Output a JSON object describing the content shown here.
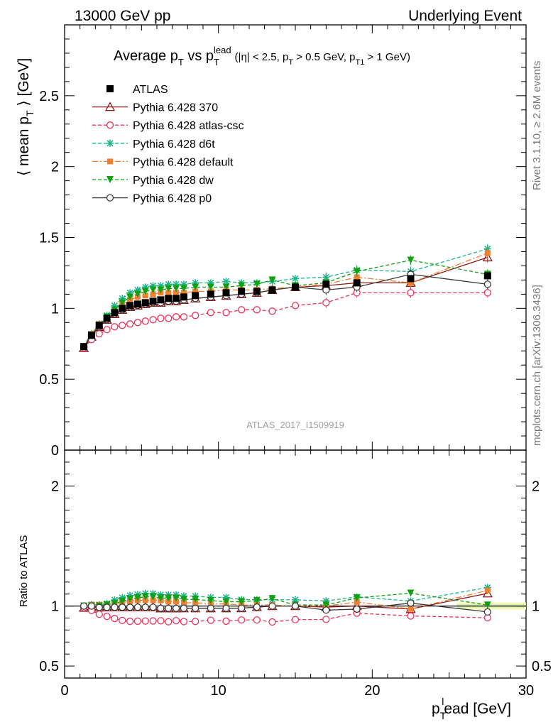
{
  "header": {
    "left": "13000 GeV pp",
    "right": "Underlying Event"
  },
  "side_labels": {
    "rivet": "Rivet 3.1.10, ≥ 2.6M events",
    "mcplots": "mcplots.cern.ch [arXiv:1306.3436]"
  },
  "watermark": "ATLAS_2017_I1509919",
  "chart_data": [
    {
      "type": "line",
      "title": "Average p_T vs p_T^lead (|η| < 2.5, p_T > 0.5 GeV, p_T1 > 1 GeV)",
      "title_parts": {
        "main": "Average p",
        "sub1": "T",
        "vs": " vs p",
        "sub2": "T",
        "sup2": "lead",
        "cuts": "(|η| < 2.5, p",
        "cut_sub1": "T",
        "cuts2": " > 0.5 GeV, p",
        "cut_sub2": "T1",
        "cuts3": " > 1 GeV)"
      },
      "ylabel": "⟨ mean p_T ⟩ [GeV]",
      "ylabel_parts": {
        "a": "⟨ mean p",
        "sub": "T",
        "b": " ⟩ [GeV]"
      },
      "xlim": [
        0,
        30
      ],
      "ylim": [
        0,
        3
      ],
      "y_ticks": [
        "0",
        "0.5",
        "1",
        "1.5",
        "2",
        "2.5"
      ],
      "legend_position": "top-left",
      "x": [
        1.25,
        1.75,
        2.25,
        2.75,
        3.25,
        3.75,
        4.25,
        4.75,
        5.25,
        5.75,
        6.25,
        6.75,
        7.25,
        7.75,
        8.5,
        9.5,
        10.5,
        11.5,
        12.5,
        13.5,
        15,
        17,
        19,
        22.5,
        27.5
      ],
      "series": [
        {
          "name": "ATLAS",
          "style": "data",
          "color": "#000000",
          "marker": "filled-square",
          "dash": "",
          "values": [
            0.73,
            0.81,
            0.88,
            0.93,
            0.97,
            1.0,
            1.02,
            1.03,
            1.04,
            1.05,
            1.06,
            1.07,
            1.07,
            1.08,
            1.09,
            1.1,
            1.11,
            1.12,
            1.12,
            1.13,
            1.15,
            1.17,
            1.18,
            1.21,
            1.23
          ]
        },
        {
          "name": "Pythia 6.428 370",
          "style": "mc",
          "color": "#8b1a1a",
          "marker": "open-triangle",
          "dash": "",
          "values": [
            0.72,
            0.8,
            0.87,
            0.92,
            0.96,
            0.99,
            1.01,
            1.02,
            1.03,
            1.04,
            1.04,
            1.05,
            1.05,
            1.06,
            1.07,
            1.08,
            1.09,
            1.1,
            1.11,
            1.13,
            1.15,
            1.16,
            1.18,
            1.18,
            1.36
          ]
        },
        {
          "name": "Pythia 6.428 atlas-csc",
          "style": "mc",
          "color": "#e8345c",
          "marker": "open-circle",
          "dash": "5,3",
          "values": [
            0.72,
            0.78,
            0.82,
            0.85,
            0.87,
            0.88,
            0.89,
            0.9,
            0.91,
            0.92,
            0.93,
            0.93,
            0.94,
            0.94,
            0.95,
            0.97,
            0.97,
            0.99,
            0.99,
            0.98,
            1.02,
            1.04,
            1.11,
            1.11,
            1.11
          ]
        },
        {
          "name": "Pythia 6.428 d6t",
          "style": "mc",
          "color": "#1ab38a",
          "marker": "star",
          "dash": "5,3",
          "values": [
            0.73,
            0.82,
            0.89,
            0.95,
            1.02,
            1.07,
            1.11,
            1.13,
            1.15,
            1.16,
            1.16,
            1.17,
            1.17,
            1.17,
            1.18,
            1.18,
            1.19,
            1.18,
            1.18,
            1.19,
            1.21,
            1.22,
            1.27,
            1.26,
            1.42
          ]
        },
        {
          "name": "Pythia 6.428 default",
          "style": "mc",
          "color": "#f07f30",
          "marker": "filled-square-small",
          "dash": "8,3,2,3",
          "values": [
            0.73,
            0.82,
            0.89,
            0.94,
            0.99,
            1.03,
            1.06,
            1.08,
            1.09,
            1.1,
            1.11,
            1.11,
            1.11,
            1.11,
            1.12,
            1.12,
            1.13,
            1.13,
            1.13,
            1.14,
            1.15,
            1.17,
            1.22,
            1.18,
            1.39
          ]
        },
        {
          "name": "Pythia 6.428 dw",
          "style": "mc",
          "color": "#12a012",
          "marker": "filled-triangle-down",
          "dash": "5,3",
          "values": [
            0.73,
            0.81,
            0.88,
            0.94,
            0.99,
            1.04,
            1.08,
            1.1,
            1.12,
            1.13,
            1.13,
            1.14,
            1.14,
            1.14,
            1.15,
            1.15,
            1.15,
            1.16,
            1.17,
            1.2,
            1.16,
            1.18,
            1.26,
            1.34,
            1.24
          ]
        },
        {
          "name": "Pythia 6.428 p0",
          "style": "mc",
          "color": "#3a3a3a",
          "marker": "open-circle",
          "dash": "",
          "values": [
            0.73,
            0.81,
            0.87,
            0.92,
            0.96,
            0.99,
            1.01,
            1.02,
            1.03,
            1.04,
            1.04,
            1.05,
            1.05,
            1.06,
            1.07,
            1.08,
            1.09,
            1.1,
            1.11,
            1.13,
            1.15,
            1.13,
            1.15,
            1.24,
            1.17
          ]
        }
      ]
    },
    {
      "type": "line",
      "ylabel": "Ratio to ATLAS",
      "xlabel": "p_T^lead [GeV]",
      "xlabel_parts": {
        "a": "p",
        "sub": "T",
        "sup": "l",
        "b": "ead [GeV]"
      },
      "xlim": [
        0,
        30
      ],
      "ylim": [
        0.4,
        2.3
      ],
      "x_ticks": [
        "0",
        "10",
        "20",
        "30"
      ],
      "y_ticks": [
        "0.5",
        "1",
        "2"
      ],
      "y_ticks_right": [
        "0.5",
        "1",
        "2"
      ],
      "reference": 1.0
    }
  ]
}
